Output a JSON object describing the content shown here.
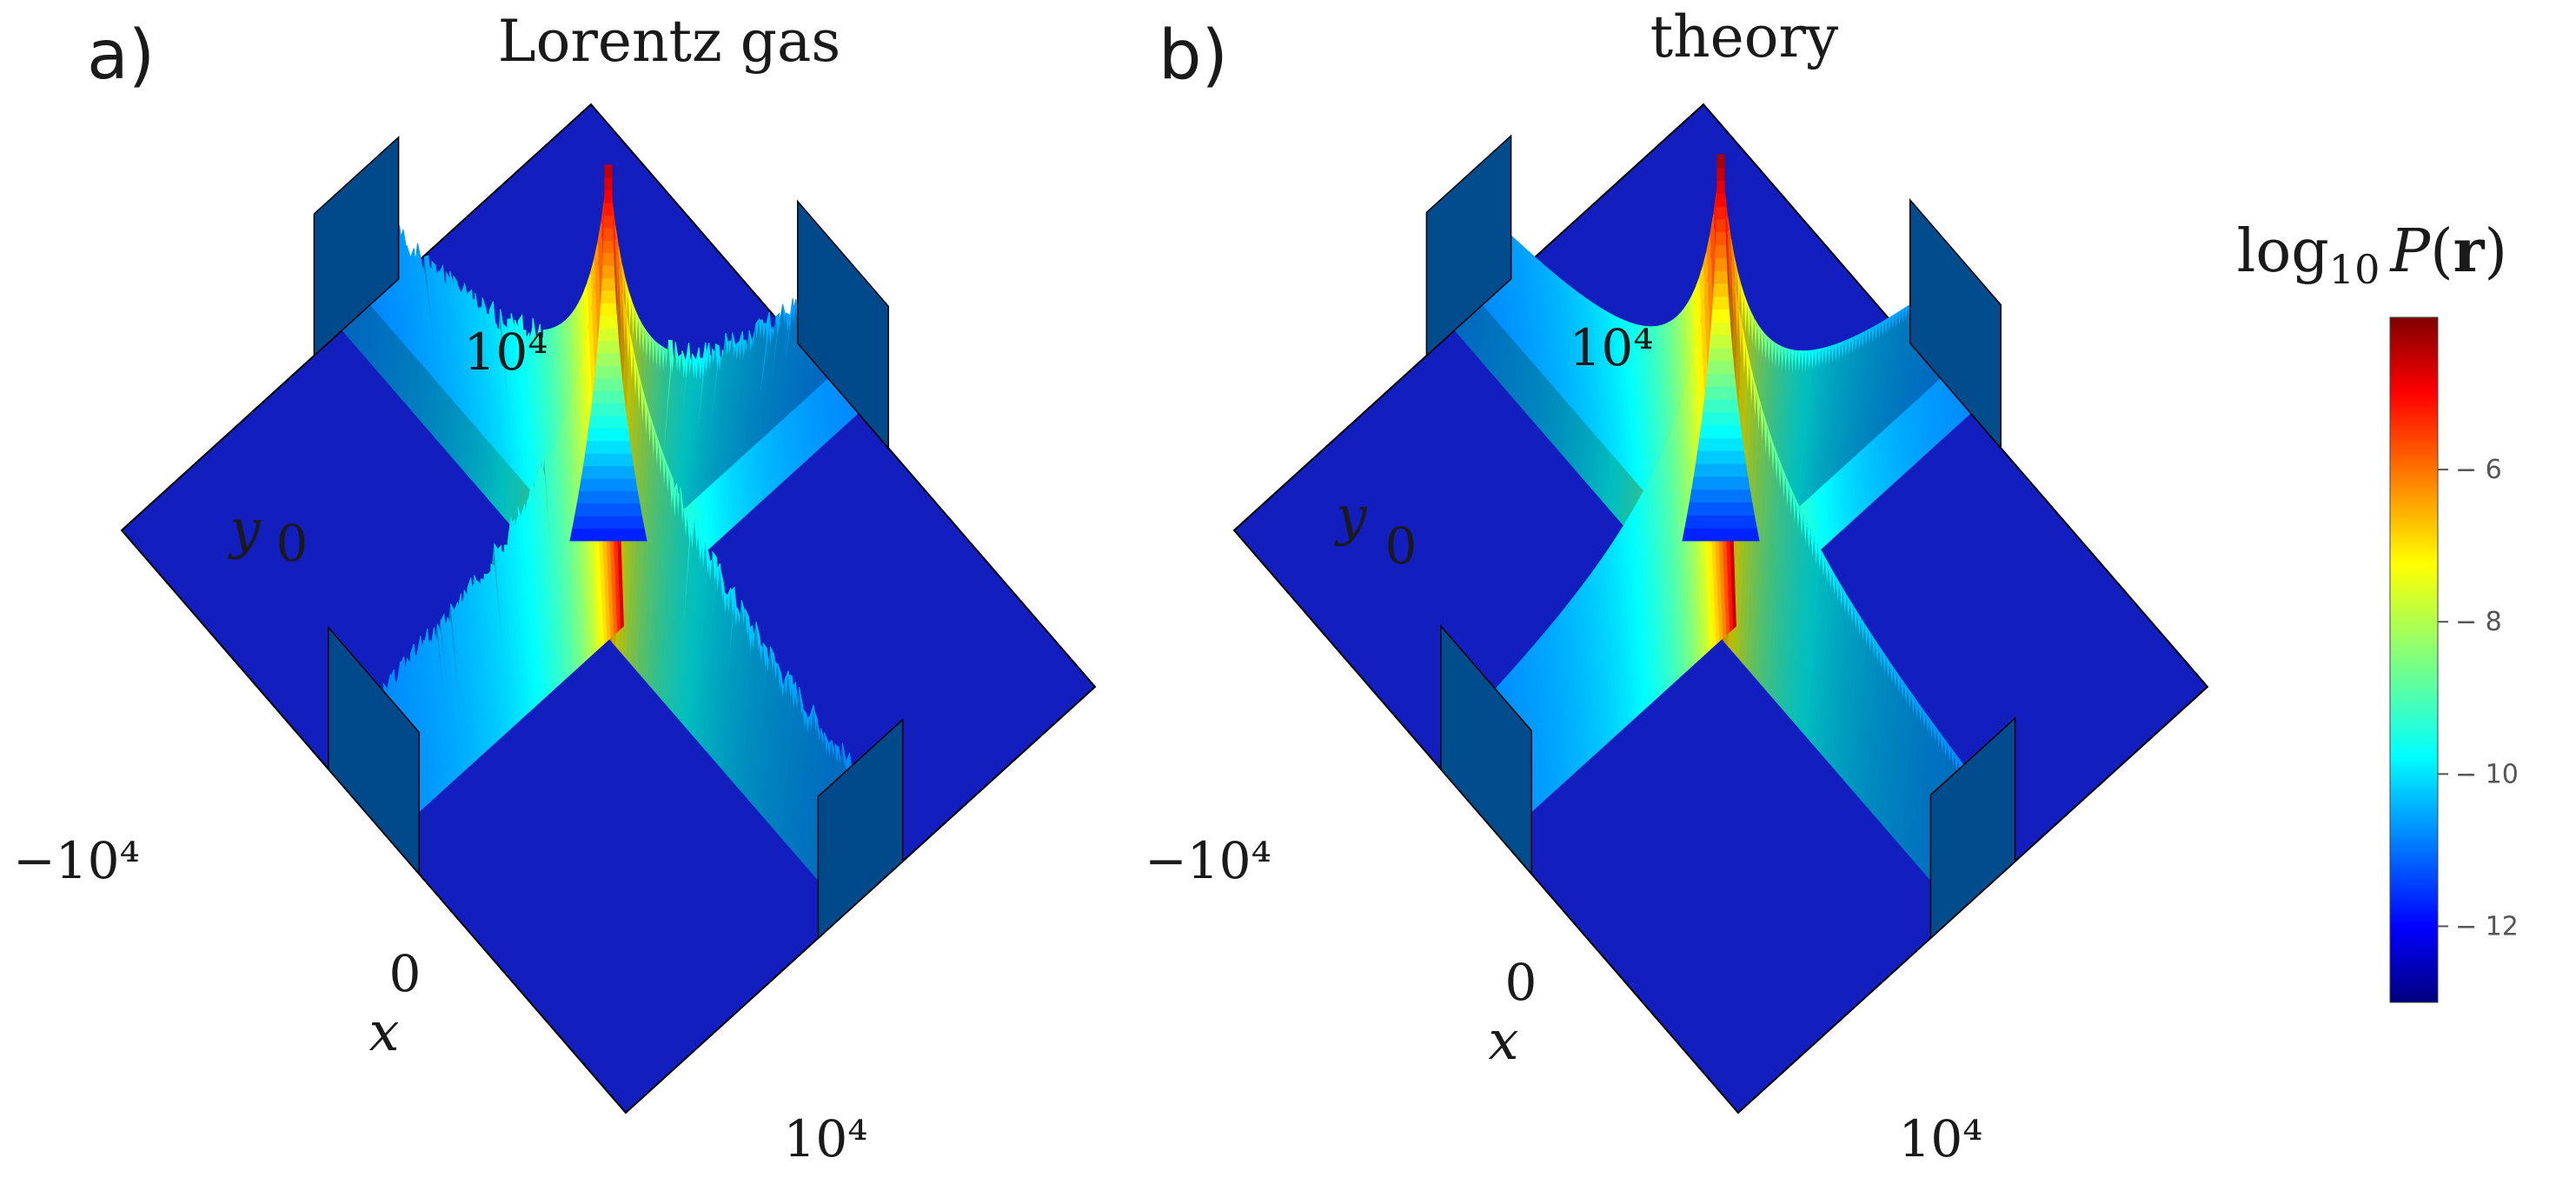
{
  "chart_data": [
    {
      "type": "surface3d",
      "panel_label": "a)",
      "title": "Lorentz gas",
      "xlabel": "x",
      "ylabel": "y",
      "x_ticks": [
        "0",
        "10⁴"
      ],
      "y_ticks": [
        "−10⁴",
        "0",
        "10⁴"
      ],
      "xlim": [
        -10000,
        10000
      ],
      "ylim": [
        -10000,
        10000
      ],
      "zlim": [
        -13,
        -4
      ],
      "peak_log10P": -4.5,
      "floor_log10P": -13,
      "noisy": true,
      "description_of_shape": "central peak with ridges along the x and y axes decaying outward; ridge edges at ±10⁴ rise to about −12"
    },
    {
      "type": "surface3d",
      "panel_label": "b)",
      "title": "theory",
      "xlabel": "x",
      "ylabel": "y",
      "x_ticks": [
        "0",
        "10⁴"
      ],
      "y_ticks": [
        "−10⁴",
        "0",
        "10⁴"
      ],
      "xlim": [
        -10000,
        10000
      ],
      "ylim": [
        -10000,
        10000
      ],
      "zlim": [
        -13,
        -4
      ],
      "peak_log10P": -4.3,
      "floor_log10P": -13,
      "noisy": false
    }
  ],
  "colorbar": {
    "label_prefix": "log",
    "label_sub": "10",
    "label_main": "P",
    "label_arg": "r",
    "ticks": [
      -6,
      -8,
      -10,
      -12
    ],
    "tick_labels": [
      "− 6",
      "− 8",
      "− 10",
      "− 12"
    ],
    "range": [
      -13,
      -4
    ],
    "colormap": "jet"
  }
}
